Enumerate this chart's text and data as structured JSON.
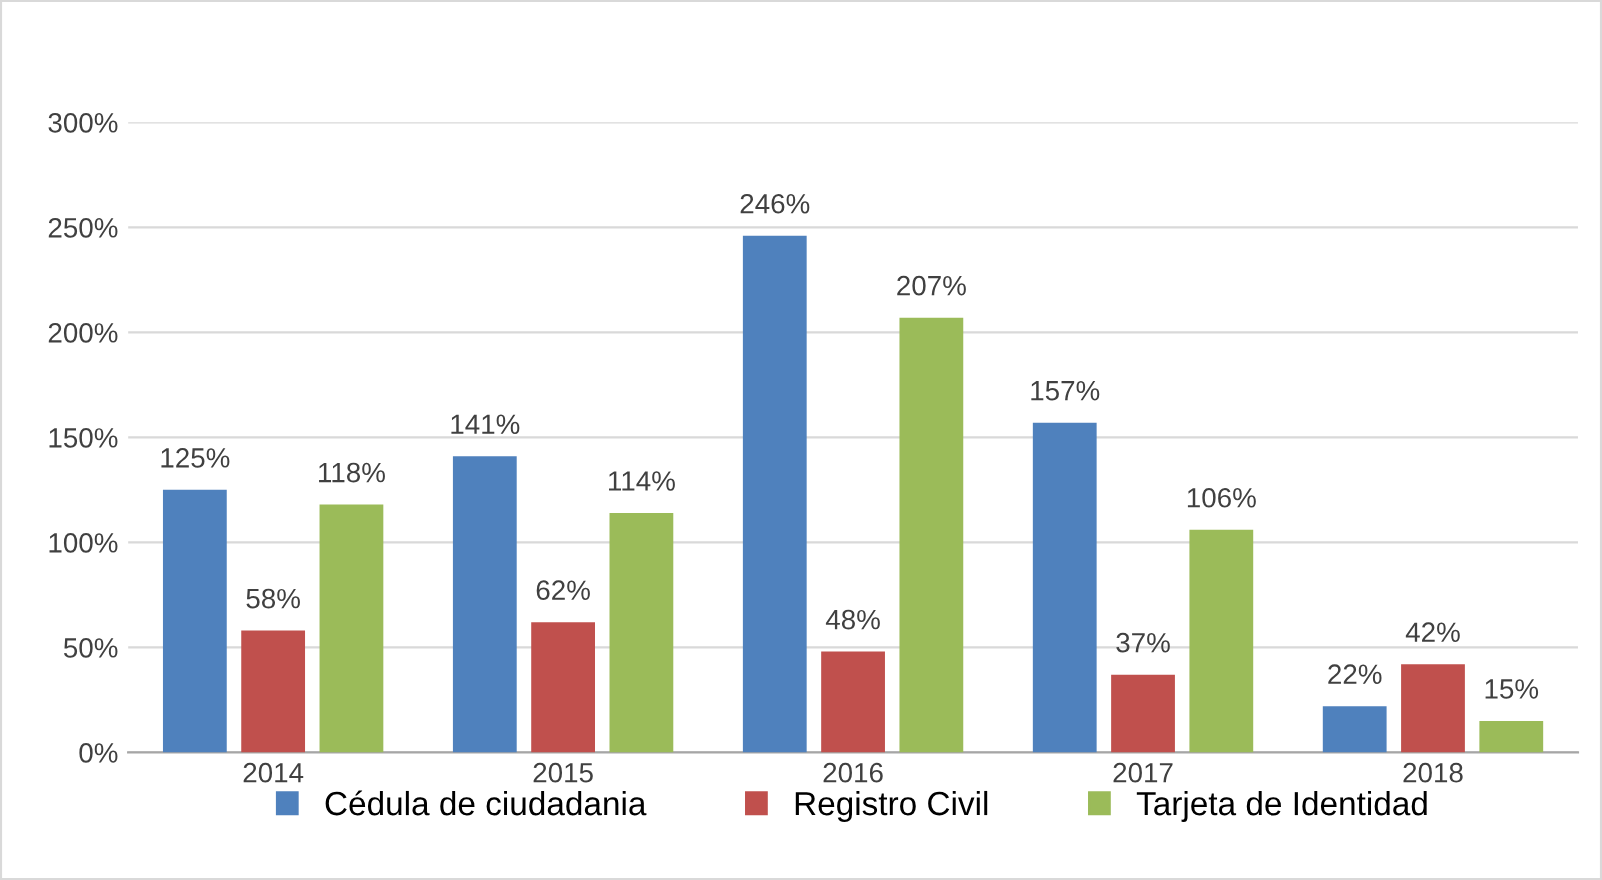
{
  "chart_data": {
    "type": "bar",
    "categories": [
      "2014",
      "2015",
      "2016",
      "2017",
      "2018"
    ],
    "series": [
      {
        "name": "Cédula de ciudadania",
        "color": "#4f81bd",
        "values": [
          125,
          141,
          246,
          157,
          22
        ],
        "value_labels": [
          "125%",
          "141%",
          "246%",
          "157%",
          "22%"
        ]
      },
      {
        "name": "Registro Civil",
        "color": "#c0504d",
        "values": [
          58,
          62,
          48,
          37,
          42
        ],
        "value_labels": [
          "58%",
          "62%",
          "48%",
          "37%",
          "42%"
        ]
      },
      {
        "name": "Tarjeta de Identidad",
        "color": "#9bbb59",
        "values": [
          118,
          114,
          207,
          106,
          15
        ],
        "value_labels": [
          "118%",
          "114%",
          "207%",
          "106%",
          "15%"
        ]
      }
    ],
    "ylim": [
      0,
      300
    ],
    "yticks": [
      {
        "value": 0,
        "label": "0%"
      },
      {
        "value": 50,
        "label": "50%"
      },
      {
        "value": 100,
        "label": "100%"
      },
      {
        "value": 150,
        "label": "150%"
      },
      {
        "value": 200,
        "label": "200%"
      },
      {
        "value": 250,
        "label": "250%"
      },
      {
        "value": 300,
        "label": "300%"
      }
    ],
    "grid": "y",
    "legend": "bottom"
  }
}
